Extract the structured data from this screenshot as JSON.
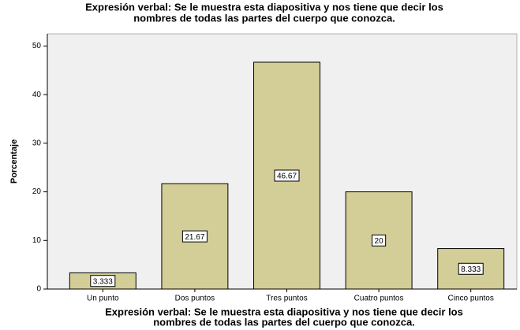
{
  "chart_data": {
    "type": "bar",
    "title": [
      "Expresión verbal: Se le muestra esta diapositiva y nos tiene que decir los",
      "nombres de todas las partes del cuerpo que conozca."
    ],
    "x_label": [
      "Expresión verbal: Se le muestra esta diapositiva y nos tiene que decir los",
      "nombres de todas las partes del cuerpo que conozca."
    ],
    "y_label": "Porcentaje",
    "categories": [
      "Un punto",
      "Dos puntos",
      "Tres puntos",
      "Cuatro puntos",
      "Cinco puntos"
    ],
    "values": [
      3.333,
      21.67,
      46.67,
      20,
      8.333
    ],
    "color": "#d3ce97",
    "ylim": [
      0,
      52.5
    ],
    "yticks": [
      0,
      10,
      20,
      30,
      40,
      50
    ],
    "grid": false
  }
}
